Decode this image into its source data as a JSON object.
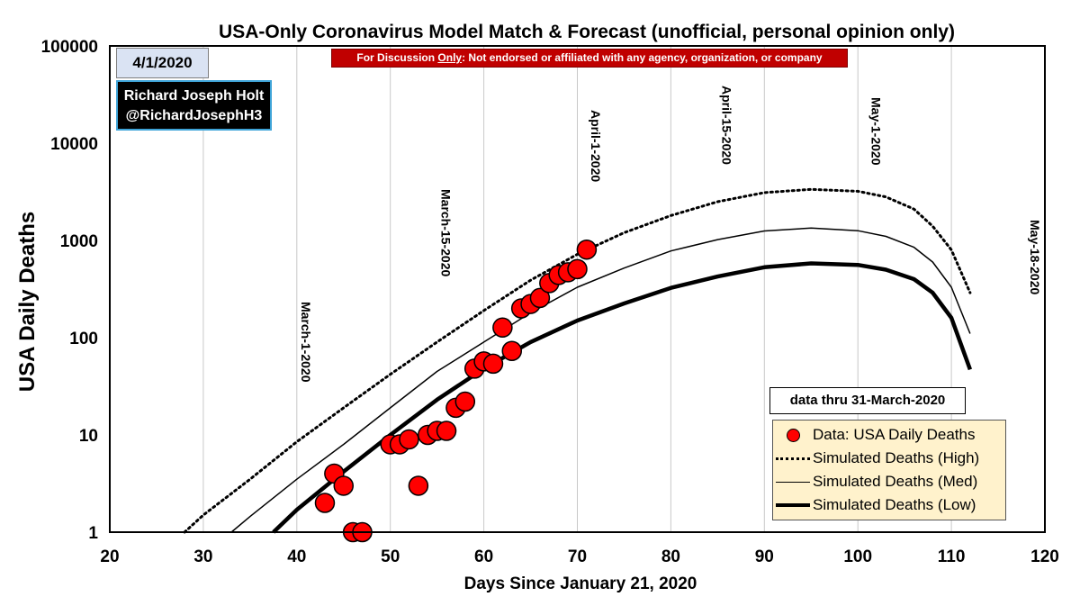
{
  "chart_data": {
    "type": "scatter",
    "title": "USA-Only Coronavirus Model Match & Forecast (unofficial, personal opinion only)",
    "xlabel": "Days Since January 21, 2020",
    "ylabel": "USA Daily Deaths",
    "xlim": [
      20,
      120
    ],
    "ylim": [
      1,
      100000
    ],
    "y_scale": "log",
    "x_ticks": [
      "20",
      "30",
      "40",
      "50",
      "60",
      "70",
      "80",
      "90",
      "100",
      "110",
      "120"
    ],
    "y_ticks": [
      "1",
      "10",
      "100",
      "1000",
      "10000",
      "100000"
    ],
    "grid": "vertical",
    "legend_position": "bottom-right",
    "date_markers": [
      {
        "x": 40,
        "label": "March-1-2020"
      },
      {
        "x": 55,
        "label": "March-15-2020"
      },
      {
        "x": 71,
        "label": "April-1-2020"
      },
      {
        "x": 85,
        "label": "April-15-2020"
      },
      {
        "x": 101,
        "label": "May-1-2020"
      },
      {
        "x": 118,
        "label": "May-18-2020"
      }
    ],
    "series": [
      {
        "name": "Data: USA Daily Deaths",
        "style": "markers",
        "color": "#ff0000",
        "points": [
          [
            43,
            2
          ],
          [
            44,
            4
          ],
          [
            45,
            3
          ],
          [
            46,
            1
          ],
          [
            47,
            1
          ],
          [
            50,
            8
          ],
          [
            51,
            8
          ],
          [
            52,
            9
          ],
          [
            53,
            3
          ],
          [
            54,
            10
          ],
          [
            55,
            11
          ],
          [
            56,
            11
          ],
          [
            57,
            19
          ],
          [
            58,
            22
          ],
          [
            59,
            48
          ],
          [
            60,
            57
          ],
          [
            61,
            54
          ],
          [
            62,
            127
          ],
          [
            63,
            73
          ],
          [
            64,
            200
          ],
          [
            65,
            222
          ],
          [
            66,
            256
          ],
          [
            67,
            364
          ],
          [
            68,
            441
          ],
          [
            69,
            470
          ],
          [
            70,
            507
          ],
          [
            71,
            804
          ]
        ]
      },
      {
        "name": "Simulated Deaths (High)",
        "style": "dotted",
        "color": "#000000",
        "points": [
          [
            28,
            1
          ],
          [
            30,
            1.5
          ],
          [
            35,
            3.5
          ],
          [
            40,
            8.5
          ],
          [
            45,
            19
          ],
          [
            50,
            42
          ],
          [
            55,
            90
          ],
          [
            60,
            190
          ],
          [
            65,
            390
          ],
          [
            70,
            720
          ],
          [
            75,
            1200
          ],
          [
            80,
            1800
          ],
          [
            85,
            2500
          ],
          [
            90,
            3100
          ],
          [
            95,
            3350
          ],
          [
            100,
            3200
          ],
          [
            103,
            2800
          ],
          [
            106,
            2100
          ],
          [
            108,
            1400
          ],
          [
            110,
            800
          ],
          [
            112,
            290
          ]
        ]
      },
      {
        "name": "Simulated Deaths (Med)",
        "style": "thin",
        "color": "#000000",
        "points": [
          [
            33,
            1
          ],
          [
            35,
            1.45
          ],
          [
            40,
            3.5
          ],
          [
            45,
            8
          ],
          [
            50,
            19
          ],
          [
            55,
            45
          ],
          [
            60,
            90
          ],
          [
            65,
            180
          ],
          [
            70,
            330
          ],
          [
            75,
            520
          ],
          [
            80,
            780
          ],
          [
            85,
            1020
          ],
          [
            90,
            1250
          ],
          [
            95,
            1340
          ],
          [
            100,
            1260
          ],
          [
            103,
            1100
          ],
          [
            106,
            850
          ],
          [
            108,
            600
          ],
          [
            110,
            330
          ],
          [
            112,
            110
          ]
        ]
      },
      {
        "name": "Simulated Deaths (Low)",
        "style": "thick",
        "color": "#000000",
        "points": [
          [
            37.5,
            1
          ],
          [
            40,
            1.7
          ],
          [
            45,
            4.2
          ],
          [
            50,
            10
          ],
          [
            55,
            23
          ],
          [
            60,
            48
          ],
          [
            65,
            90
          ],
          [
            70,
            150
          ],
          [
            75,
            225
          ],
          [
            80,
            325
          ],
          [
            85,
            425
          ],
          [
            90,
            530
          ],
          [
            95,
            580
          ],
          [
            100,
            560
          ],
          [
            103,
            500
          ],
          [
            106,
            400
          ],
          [
            108,
            290
          ],
          [
            110,
            160
          ],
          [
            112,
            47
          ]
        ]
      }
    ]
  },
  "annotations": {
    "date_box": "4/1/2020",
    "author_name": "Richard Joseph Holt",
    "author_handle": "@RichardJosephH3",
    "disclaimer_prefix": "For Discussion ",
    "disclaimer_underlined": "Only",
    "disclaimer_suffix": ": Not endorsed or affiliated with any agency, organization, or company",
    "data_thru": "data thru 31-March-2020"
  },
  "legend": {
    "items": [
      {
        "label": "Data: USA Daily Deaths",
        "symbol": "dot"
      },
      {
        "label": "Simulated Deaths (High)",
        "symbol": "dotted"
      },
      {
        "label": "Simulated Deaths (Med)",
        "symbol": "thin"
      },
      {
        "label": "Simulated Deaths (Low)",
        "symbol": "thick"
      }
    ]
  }
}
